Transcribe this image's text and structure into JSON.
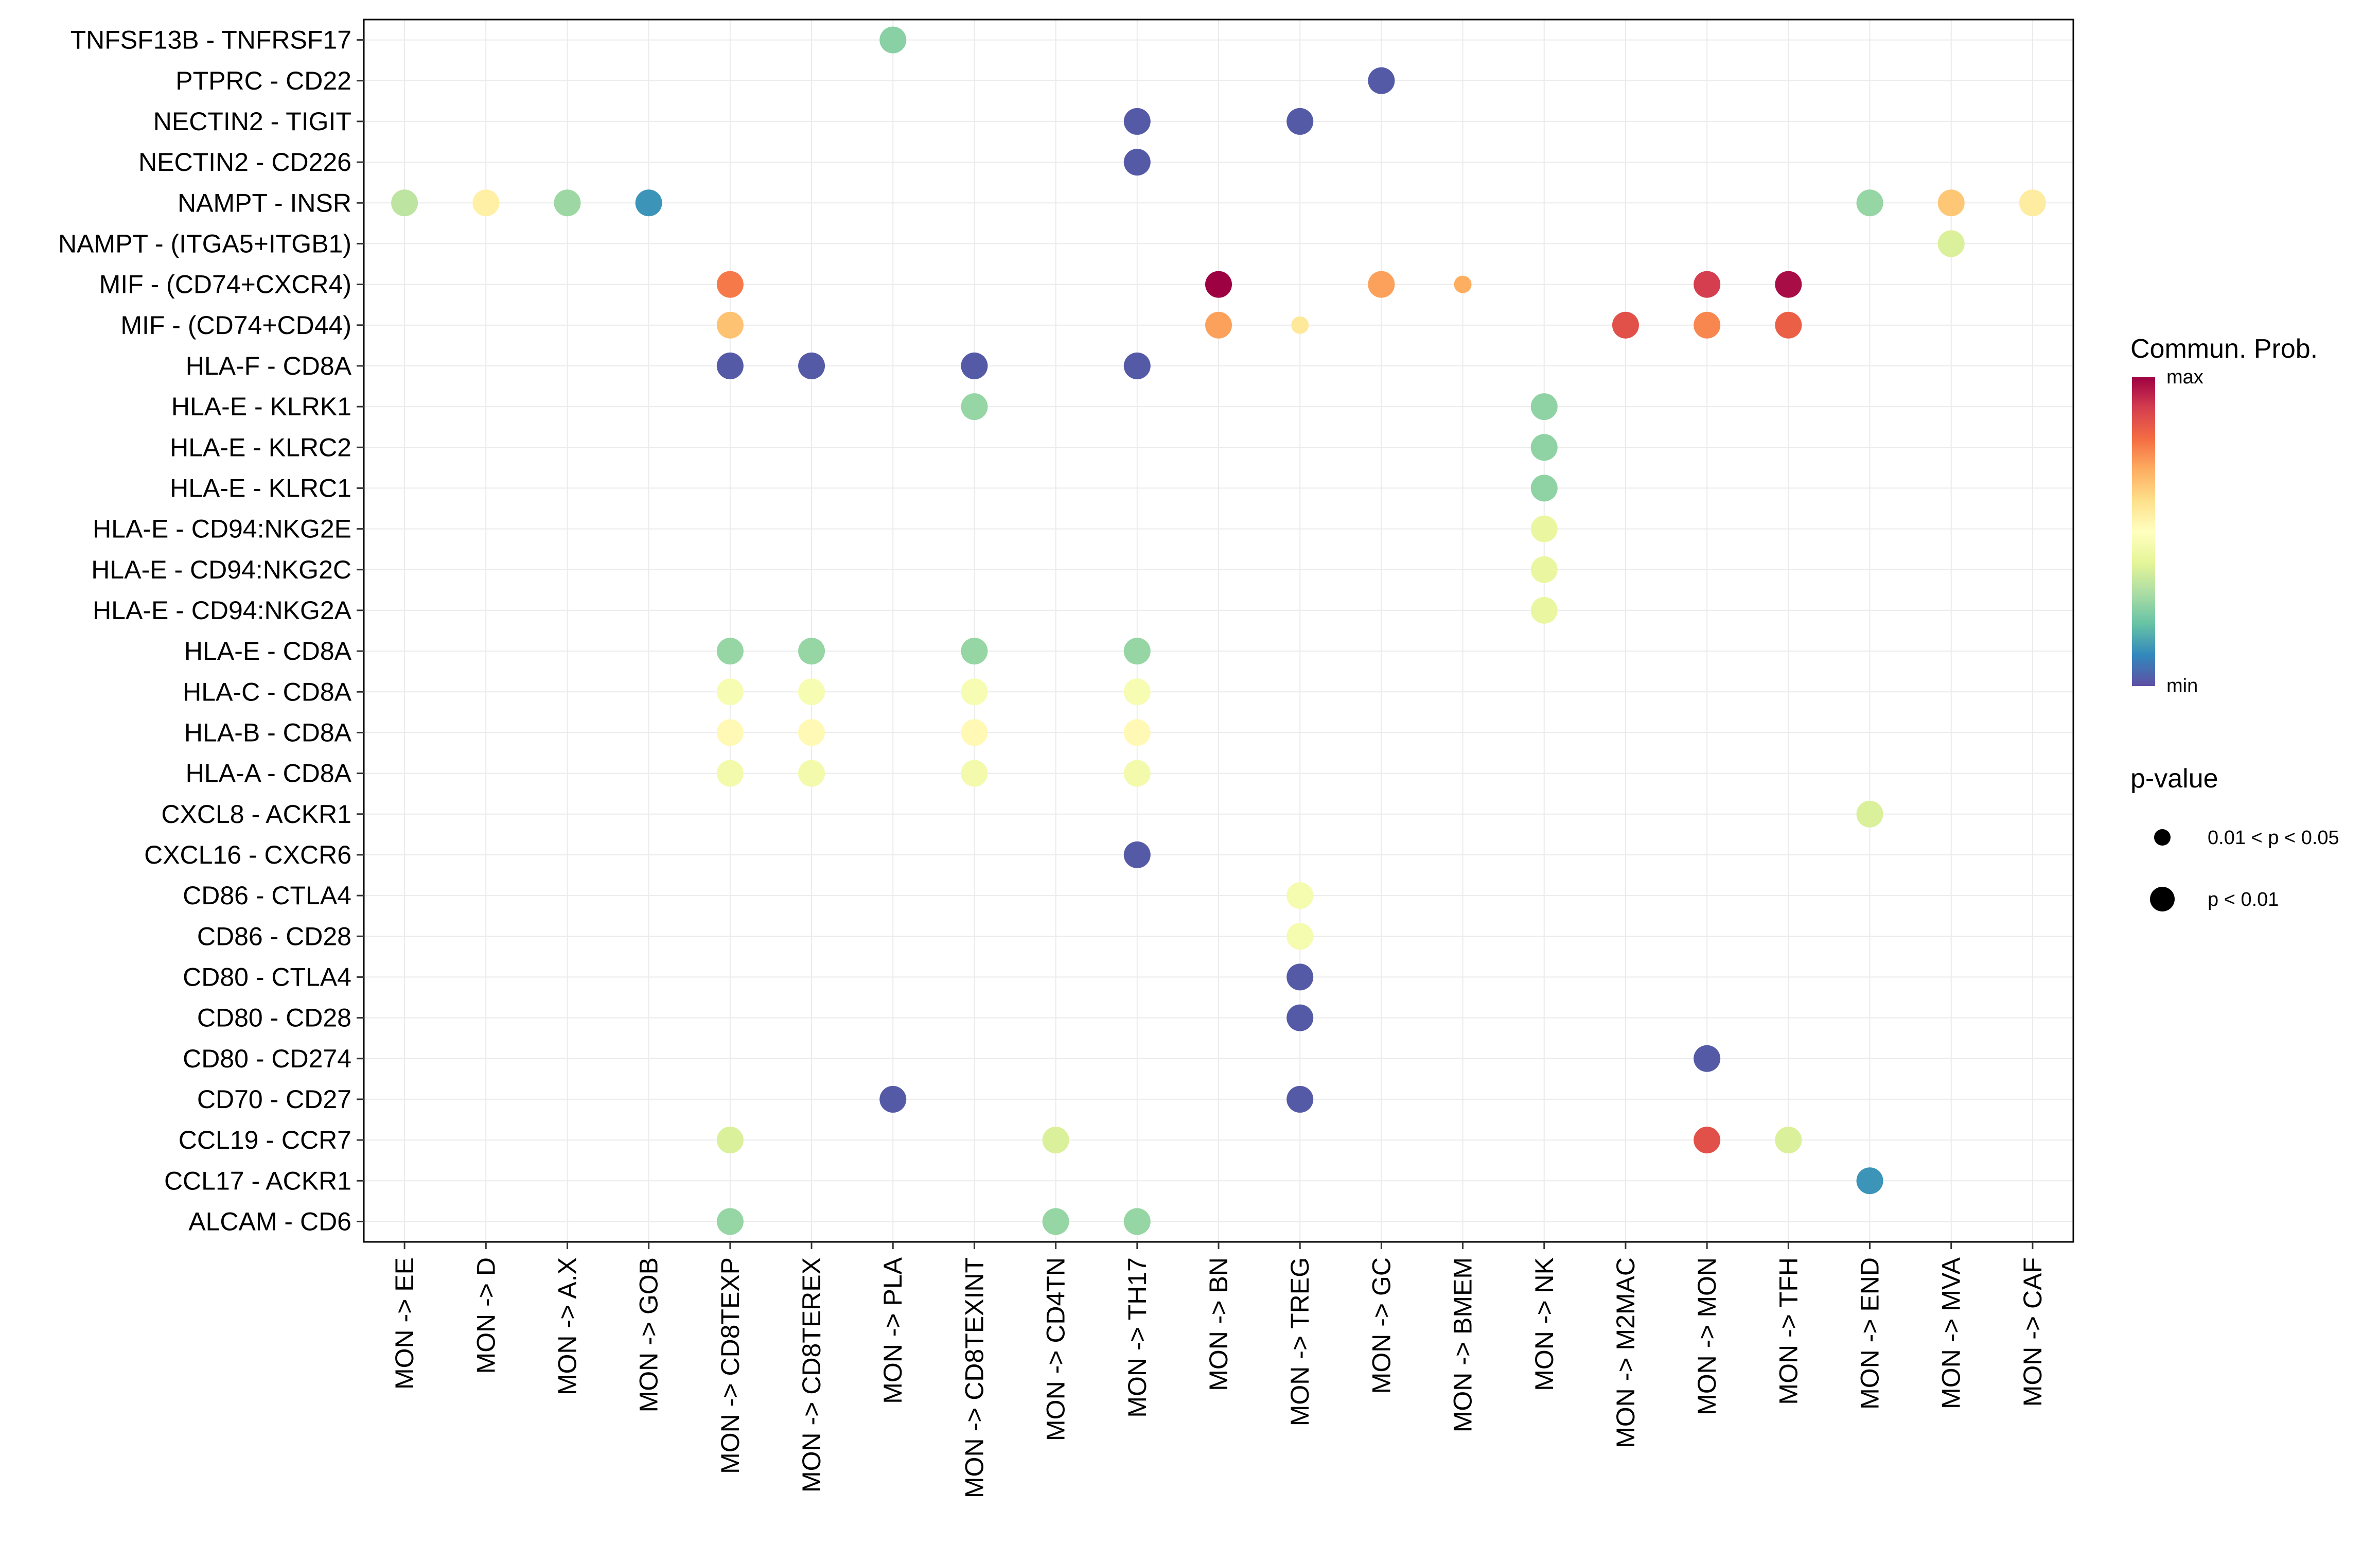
{
  "chart_data": {
    "type": "dot",
    "title": "",
    "xlabel": "",
    "ylabel": "",
    "categories": [
      "MON -> EE",
      "MON -> D",
      "MON -> A.X",
      "MON -> GOB",
      "MON -> CD8TEXP",
      "MON -> CD8TEREX",
      "MON -> PLA",
      "MON -> CD8TEXINT",
      "MON -> CD4TN",
      "MON -> TH17",
      "MON -> BN",
      "MON -> TREG",
      "MON -> GC",
      "MON -> BMEM",
      "MON -> NK",
      "MON -> M2MAC",
      "MON -> MON",
      "MON -> TFH",
      "MON -> END",
      "MON -> MVA",
      "MON -> CAF"
    ],
    "pairs": [
      "TNFSF13B - TNFRSF17",
      "PTPRC - CD22",
      "NECTIN2 - TIGIT",
      "NECTIN2 - CD226",
      "NAMPT - INSR",
      "NAMPT - (ITGA5+ITGB1)",
      "MIF - (CD74+CXCR4)",
      "MIF - (CD74+CD44)",
      "HLA-F - CD8A",
      "HLA-E - KLRK1",
      "HLA-E - KLRC2",
      "HLA-E - KLRC1",
      "HLA-E - CD94:NKG2E",
      "HLA-E - CD94:NKG2C",
      "HLA-E - CD94:NKG2A",
      "HLA-E - CD8A",
      "HLA-C - CD8A",
      "HLA-B - CD8A",
      "HLA-A - CD8A",
      "CXCL8 - ACKR1",
      "CXCL16 - CXCR6",
      "CD86 - CTLA4",
      "CD86 - CD28",
      "CD80 - CTLA4",
      "CD80 - CD28",
      "CD80 - CD274",
      "CD70 - CD27",
      "CCL19 - CCR7",
      "CCL17 - ACKR1",
      "ALCAM - CD6"
    ],
    "points": [
      {
        "x": "MON -> PLA",
        "y": "TNFSF13B - TNFRSF17",
        "prob": 0.25,
        "pval": "p < 0.01"
      },
      {
        "x": "MON -> GC",
        "y": "PTPRC - CD22",
        "prob": 0.02,
        "pval": "p < 0.01"
      },
      {
        "x": "MON -> TH17",
        "y": "NECTIN2 - TIGIT",
        "prob": 0.02,
        "pval": "p < 0.01"
      },
      {
        "x": "MON -> TREG",
        "y": "NECTIN2 - TIGIT",
        "prob": 0.02,
        "pval": "p < 0.01"
      },
      {
        "x": "MON -> TH17",
        "y": "NECTIN2 - CD226",
        "prob": 0.02,
        "pval": "p < 0.01"
      },
      {
        "x": "MON -> EE",
        "y": "NAMPT - INSR",
        "prob": 0.33,
        "pval": "p < 0.01"
      },
      {
        "x": "MON -> D",
        "y": "NAMPT - INSR",
        "prob": 0.55,
        "pval": "p < 0.01"
      },
      {
        "x": "MON -> A.X",
        "y": "NAMPT - INSR",
        "prob": 0.28,
        "pval": "p < 0.01"
      },
      {
        "x": "MON -> GOB",
        "y": "NAMPT - INSR",
        "prob": 0.12,
        "pval": "p < 0.01"
      },
      {
        "x": "MON -> END",
        "y": "NAMPT - INSR",
        "prob": 0.27,
        "pval": "p < 0.01"
      },
      {
        "x": "MON -> MVA",
        "y": "NAMPT - INSR",
        "prob": 0.65,
        "pval": "p < 0.01"
      },
      {
        "x": "MON -> CAF",
        "y": "NAMPT - INSR",
        "prob": 0.56,
        "pval": "p < 0.01"
      },
      {
        "x": "MON -> MVA",
        "y": "NAMPT - (ITGA5+ITGB1)",
        "prob": 0.38,
        "pval": "p < 0.01"
      },
      {
        "x": "MON -> CD8TEXP",
        "y": "MIF - (CD74+CXCR4)",
        "prob": 0.78,
        "pval": "p < 0.01"
      },
      {
        "x": "MON -> BN",
        "y": "MIF - (CD74+CXCR4)",
        "prob": 1.0,
        "pval": "p < 0.01"
      },
      {
        "x": "MON -> GC",
        "y": "MIF - (CD74+CXCR4)",
        "prob": 0.72,
        "pval": "p < 0.01"
      },
      {
        "x": "MON -> BMEM",
        "y": "MIF - (CD74+CXCR4)",
        "prob": 0.7,
        "pval": "0.01 < p < 0.05"
      },
      {
        "x": "MON -> MON",
        "y": "MIF - (CD74+CXCR4)",
        "prob": 0.9,
        "pval": "p < 0.01"
      },
      {
        "x": "MON -> TFH",
        "y": "MIF - (CD74+CXCR4)",
        "prob": 0.98,
        "pval": "p < 0.01"
      },
      {
        "x": "MON -> CD8TEXP",
        "y": "MIF - (CD74+CD44)",
        "prob": 0.66,
        "pval": "p < 0.01"
      },
      {
        "x": "MON -> BN",
        "y": "MIF - (CD74+CD44)",
        "prob": 0.72,
        "pval": "p < 0.01"
      },
      {
        "x": "MON -> TREG",
        "y": "MIF - (CD74+CD44)",
        "prob": 0.57,
        "pval": "0.01 < p < 0.05"
      },
      {
        "x": "MON -> M2MAC",
        "y": "MIF - (CD74+CD44)",
        "prob": 0.86,
        "pval": "p < 0.01"
      },
      {
        "x": "MON -> MON",
        "y": "MIF - (CD74+CD44)",
        "prob": 0.76,
        "pval": "p < 0.01"
      },
      {
        "x": "MON -> TFH",
        "y": "MIF - (CD74+CD44)",
        "prob": 0.83,
        "pval": "p < 0.01"
      },
      {
        "x": "MON -> CD8TEXP",
        "y": "HLA-F - CD8A",
        "prob": 0.02,
        "pval": "p < 0.01"
      },
      {
        "x": "MON -> CD8TEREX",
        "y": "HLA-F - CD8A",
        "prob": 0.02,
        "pval": "p < 0.01"
      },
      {
        "x": "MON -> CD8TEXINT",
        "y": "HLA-F - CD8A",
        "prob": 0.02,
        "pval": "p < 0.01"
      },
      {
        "x": "MON -> TH17",
        "y": "HLA-F - CD8A",
        "prob": 0.02,
        "pval": "p < 0.01"
      },
      {
        "x": "MON -> CD8TEXINT",
        "y": "HLA-E - KLRK1",
        "prob": 0.27,
        "pval": "p < 0.01"
      },
      {
        "x": "MON -> NK",
        "y": "HLA-E - KLRK1",
        "prob": 0.26,
        "pval": "p < 0.01"
      },
      {
        "x": "MON -> NK",
        "y": "HLA-E - KLRC2",
        "prob": 0.26,
        "pval": "p < 0.01"
      },
      {
        "x": "MON -> NK",
        "y": "HLA-E - KLRC1",
        "prob": 0.26,
        "pval": "p < 0.01"
      },
      {
        "x": "MON -> NK",
        "y": "HLA-E - CD94:NKG2E",
        "prob": 0.42,
        "pval": "p < 0.01"
      },
      {
        "x": "MON -> NK",
        "y": "HLA-E - CD94:NKG2C",
        "prob": 0.42,
        "pval": "p < 0.01"
      },
      {
        "x": "MON -> NK",
        "y": "HLA-E - CD94:NKG2A",
        "prob": 0.42,
        "pval": "p < 0.01"
      },
      {
        "x": "MON -> CD8TEXP",
        "y": "HLA-E - CD8A",
        "prob": 0.27,
        "pval": "p < 0.01"
      },
      {
        "x": "MON -> CD8TEREX",
        "y": "HLA-E - CD8A",
        "prob": 0.27,
        "pval": "p < 0.01"
      },
      {
        "x": "MON -> CD8TEXINT",
        "y": "HLA-E - CD8A",
        "prob": 0.27,
        "pval": "p < 0.01"
      },
      {
        "x": "MON -> TH17",
        "y": "HLA-E - CD8A",
        "prob": 0.27,
        "pval": "p < 0.01"
      },
      {
        "x": "MON -> CD8TEXP",
        "y": "HLA-C - CD8A",
        "prob": 0.47,
        "pval": "p < 0.01"
      },
      {
        "x": "MON -> CD8TEREX",
        "y": "HLA-C - CD8A",
        "prob": 0.47,
        "pval": "p < 0.01"
      },
      {
        "x": "MON -> CD8TEXINT",
        "y": "HLA-C - CD8A",
        "prob": 0.47,
        "pval": "p < 0.01"
      },
      {
        "x": "MON -> TH17",
        "y": "HLA-C - CD8A",
        "prob": 0.47,
        "pval": "p < 0.01"
      },
      {
        "x": "MON -> CD8TEXP",
        "y": "HLA-B - CD8A",
        "prob": 0.52,
        "pval": "p < 0.01"
      },
      {
        "x": "MON -> CD8TEREX",
        "y": "HLA-B - CD8A",
        "prob": 0.52,
        "pval": "p < 0.01"
      },
      {
        "x": "MON -> CD8TEXINT",
        "y": "HLA-B - CD8A",
        "prob": 0.52,
        "pval": "p < 0.01"
      },
      {
        "x": "MON -> TH17",
        "y": "HLA-B - CD8A",
        "prob": 0.52,
        "pval": "p < 0.01"
      },
      {
        "x": "MON -> CD8TEXP",
        "y": "HLA-A - CD8A",
        "prob": 0.45,
        "pval": "p < 0.01"
      },
      {
        "x": "MON -> CD8TEREX",
        "y": "HLA-A - CD8A",
        "prob": 0.45,
        "pval": "p < 0.01"
      },
      {
        "x": "MON -> CD8TEXINT",
        "y": "HLA-A - CD8A",
        "prob": 0.45,
        "pval": "p < 0.01"
      },
      {
        "x": "MON -> TH17",
        "y": "HLA-A - CD8A",
        "prob": 0.45,
        "pval": "p < 0.01"
      },
      {
        "x": "MON -> END",
        "y": "CXCL8 - ACKR1",
        "prob": 0.38,
        "pval": "p < 0.01"
      },
      {
        "x": "MON -> TH17",
        "y": "CXCL16 - CXCR6",
        "prob": 0.02,
        "pval": "p < 0.01"
      },
      {
        "x": "MON -> TREG",
        "y": "CD86 - CTLA4",
        "prob": 0.46,
        "pval": "p < 0.01"
      },
      {
        "x": "MON -> TREG",
        "y": "CD86 - CD28",
        "prob": 0.46,
        "pval": "p < 0.01"
      },
      {
        "x": "MON -> TREG",
        "y": "CD80 - CTLA4",
        "prob": 0.02,
        "pval": "p < 0.01"
      },
      {
        "x": "MON -> TREG",
        "y": "CD80 - CD28",
        "prob": 0.02,
        "pval": "p < 0.01"
      },
      {
        "x": "MON -> MON",
        "y": "CD80 - CD274",
        "prob": 0.02,
        "pval": "p < 0.01"
      },
      {
        "x": "MON -> PLA",
        "y": "CD70 - CD27",
        "prob": 0.02,
        "pval": "p < 0.01"
      },
      {
        "x": "MON -> TREG",
        "y": "CD70 - CD27",
        "prob": 0.02,
        "pval": "p < 0.01"
      },
      {
        "x": "MON -> CD8TEXP",
        "y": "CCL19 - CCR7",
        "prob": 0.38,
        "pval": "p < 0.01"
      },
      {
        "x": "MON -> CD4TN",
        "y": "CCL19 - CCR7",
        "prob": 0.38,
        "pval": "p < 0.01"
      },
      {
        "x": "MON -> MON",
        "y": "CCL19 - CCR7",
        "prob": 0.86,
        "pval": "p < 0.01"
      },
      {
        "x": "MON -> TFH",
        "y": "CCL19 - CCR7",
        "prob": 0.38,
        "pval": "p < 0.01"
      },
      {
        "x": "MON -> END",
        "y": "CCL17 - ACKR1",
        "prob": 0.12,
        "pval": "p < 0.01"
      },
      {
        "x": "MON -> CD8TEXP",
        "y": "ALCAM - CD6",
        "prob": 0.27,
        "pval": "p < 0.01"
      },
      {
        "x": "MON -> CD4TN",
        "y": "ALCAM - CD6",
        "prob": 0.27,
        "pval": "p < 0.01"
      },
      {
        "x": "MON -> TH17",
        "y": "ALCAM - CD6",
        "prob": 0.27,
        "pval": "p < 0.01"
      }
    ],
    "color_scale": [
      "#5E4FA2",
      "#3288BD",
      "#66C2A5",
      "#ABDDA4",
      "#E6F598",
      "#FFFFBF",
      "#FEE08B",
      "#FDAE61",
      "#F46D43",
      "#D53E4F",
      "#9E0142"
    ],
    "legend": {
      "color_title": "Commun. Prob.",
      "color_max": "max",
      "color_min": "min",
      "size_title": "p-value",
      "size_labels": [
        "0.01 < p < 0.05",
        "p < 0.01"
      ]
    }
  }
}
